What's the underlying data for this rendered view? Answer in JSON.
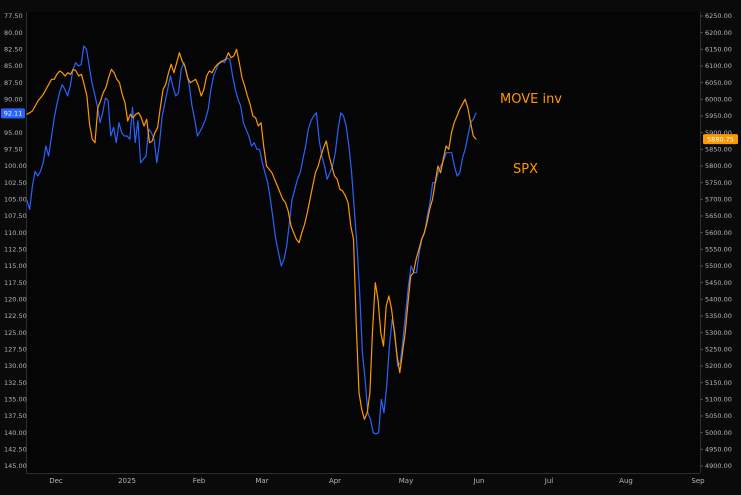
{
  "chart_data": {
    "type": "line",
    "x_ticks": [
      "Dec",
      "2025",
      "Feb",
      "Mar",
      "Apr",
      "May",
      "Jun",
      "Jul",
      "Aug",
      "Sep"
    ],
    "left_axis": {
      "inverted": true,
      "range": [
        77.5,
        145.0
      ],
      "ticks": [
        "77.50",
        "80.00",
        "82.50",
        "85.00",
        "87.50",
        "90.00",
        "92.50",
        "95.00",
        "97.50",
        "100.00",
        "102.50",
        "105.00",
        "107.50",
        "110.00",
        "112.50",
        "115.00",
        "117.50",
        "120.00",
        "122.50",
        "125.00",
        "127.50",
        "130.00",
        "132.50",
        "135.00",
        "137.50",
        "140.00",
        "142.50",
        "145.00"
      ],
      "current_label": "92.11",
      "current_value": 92.11,
      "color": "#2962ff"
    },
    "right_axis": {
      "range": [
        4900,
        6250
      ],
      "ticks": [
        "6250.00",
        "6200.00",
        "6150.00",
        "6100.00",
        "6050.00",
        "6000.00",
        "5950.00",
        "5900.00",
        "5850.00",
        "5800.00",
        "5750.00",
        "5700.00",
        "5650.00",
        "5600.00",
        "5550.00",
        "5500.00",
        "5450.00",
        "5400.00",
        "5350.00",
        "5300.00",
        "5250.00",
        "5200.00",
        "5150.00",
        "5100.00",
        "5050.00",
        "5000.00",
        "4950.00",
        "4900.00"
      ],
      "current_label": "5880.75",
      "current_value": 5880.75,
      "color": "#ff9800"
    },
    "series": [
      {
        "name": "MOVE inv",
        "axis": "left",
        "color": "#2962ff",
        "values": [
          105.2,
          106.5,
          103,
          100.8,
          101.5,
          100.8,
          99.5,
          97,
          98.5,
          95.8,
          93,
          90.8,
          89,
          87.8,
          88.5,
          89.5,
          88,
          85.5,
          84.5,
          85,
          84.8,
          82,
          82.5,
          85,
          87.5,
          89.2,
          91,
          93.5,
          92,
          89.8,
          90.2,
          95.5,
          94.2,
          96.5,
          93.5,
          95,
          95.5,
          95.5,
          96,
          91.2,
          96.5,
          93.2,
          99.5,
          99,
          98.5,
          94.5,
          95,
          96,
          99.5,
          96.5,
          92.5,
          90.5,
          88.5,
          86.5,
          88.2,
          89.5,
          89,
          85.5,
          84.5,
          86,
          88,
          91,
          93,
          95.5,
          94.8,
          94,
          93,
          91.5,
          88.5,
          86.5,
          85.5,
          84.5,
          84.2,
          84.5,
          83.8,
          84,
          86.5,
          88.5,
          90,
          91,
          93.5,
          94.5,
          95.5,
          97,
          96.5,
          97.5,
          97.5,
          99.5,
          101,
          102.5,
          105,
          108,
          111,
          113,
          115,
          114,
          112,
          108.5,
          105,
          103.5,
          102,
          101,
          99,
          97,
          94.5,
          93.2,
          92.5,
          92,
          96,
          98.5,
          100,
          102,
          101,
          100,
          98,
          94.5,
          92,
          92.5,
          94,
          97,
          101,
          106.5,
          112,
          119,
          128,
          132,
          137,
          138,
          140,
          140.2,
          140,
          135,
          137,
          133,
          127,
          123,
          125,
          130,
          129.5,
          126,
          122,
          118,
          115,
          116,
          116,
          113,
          111,
          110,
          107.5,
          105.5,
          102.5,
          102.5,
          101,
          100,
          99.2,
          98,
          98,
          98,
          100,
          101.5,
          101,
          98.8,
          97.5,
          95.5,
          93.5,
          93,
          92.1
        ]
      },
      {
        "name": "SPX",
        "axis": "right",
        "color": "#ff9800",
        "values": [
          5955,
          5960,
          5965,
          5980,
          5995,
          6005,
          6015,
          6030,
          6045,
          6060,
          6060,
          6075,
          6085,
          6080,
          6070,
          6080,
          6075,
          6090,
          6085,
          6070,
          6075,
          6045,
          6010,
          5925,
          5880,
          5870,
          5975,
          5995,
          6020,
          6035,
          6065,
          6090,
          6080,
          6060,
          6050,
          6015,
          5990,
          5935,
          5955,
          5945,
          5955,
          5960,
          5945,
          5920,
          5940,
          5870,
          5875,
          5900,
          5915,
          5975,
          6030,
          6045,
          6080,
          6105,
          6080,
          6110,
          6140,
          6115,
          6100,
          6065,
          6050,
          6055,
          6060,
          6040,
          6010,
          6030,
          6070,
          6085,
          6080,
          6095,
          6105,
          6110,
          6115,
          6120,
          6140,
          6125,
          6130,
          6150,
          6110,
          6065,
          6040,
          6010,
          5985,
          5950,
          5945,
          5920,
          5930,
          5860,
          5800,
          5790,
          5780,
          5760,
          5740,
          5720,
          5700,
          5690,
          5665,
          5620,
          5600,
          5580,
          5570,
          5600,
          5625,
          5660,
          5700,
          5740,
          5780,
          5800,
          5830,
          5855,
          5875,
          5830,
          5800,
          5770,
          5760,
          5730,
          5725,
          5710,
          5690,
          5620,
          5580,
          5320,
          5120,
          5070,
          5040,
          5060,
          5120,
          5310,
          5450,
          5400,
          5300,
          5260,
          5380,
          5410,
          5370,
          5300,
          5230,
          5180,
          5240,
          5300,
          5390,
          5470,
          5480,
          5520,
          5550,
          5580,
          5600,
          5630,
          5670,
          5700,
          5750,
          5800,
          5780,
          5820,
          5860,
          5850,
          5900,
          5930,
          5950,
          5970,
          5985,
          6000,
          5975,
          5930,
          5890,
          5880.75
        ]
      }
    ],
    "annotations": [
      {
        "text": "MOVE inv",
        "color": "#ff9800"
      },
      {
        "text": "SPX",
        "color": "#ff9800"
      }
    ],
    "grid": false,
    "legend": "none"
  }
}
